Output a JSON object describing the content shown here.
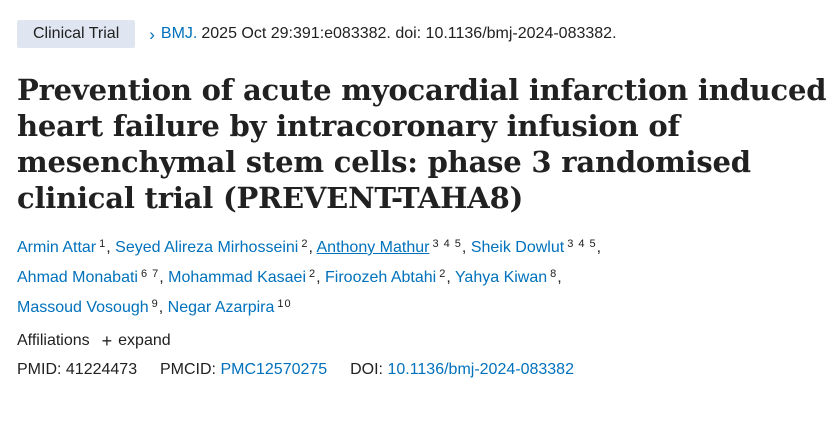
{
  "header": {
    "badge": "Clinical Trial",
    "chevron_icon": "chevron-right-icon",
    "journal": "BMJ.",
    "citation": "2025 Oct 29:391:e083382. doi: 10.1136/bmj-2024-083382."
  },
  "title": "Prevention of acute myocardial infarction induced heart failure by intracoronary infusion of mesenchymal stem cells: phase 3 randomised clinical trial (PREVENT-TAHA8)",
  "authors": [
    {
      "name": "Armin Attar",
      "aff": "1"
    },
    {
      "name": "Seyed Alireza Mirhosseini",
      "aff": "2"
    },
    {
      "name": "Anthony Mathur",
      "aff": "3 4 5"
    },
    {
      "name": "Sheik Dowlut",
      "aff": "3 4 5"
    },
    {
      "name": "Ahmad Monabati",
      "aff": "6 7"
    },
    {
      "name": "Mohammad Kasaei",
      "aff": "2"
    },
    {
      "name": "Firoozeh Abtahi",
      "aff": "2"
    },
    {
      "name": "Yahya Kiwan",
      "aff": "8"
    },
    {
      "name": "Massoud Vosough",
      "aff": "9"
    },
    {
      "name": "Negar Azarpira",
      "aff": "10"
    }
  ],
  "affiliations": {
    "label": "Affiliations",
    "plus": "+",
    "expand": "expand"
  },
  "ids": {
    "pmid_label": "PMID:",
    "pmid": "41224473",
    "pmcid_label": "PMCID:",
    "pmcid": "PMC12570275",
    "doi_label": "DOI:",
    "doi": "10.1136/bmj-2024-083382"
  },
  "colors": {
    "link": "#0071bc",
    "badge_bg": "#dfe6f1",
    "text": "#212121"
  }
}
